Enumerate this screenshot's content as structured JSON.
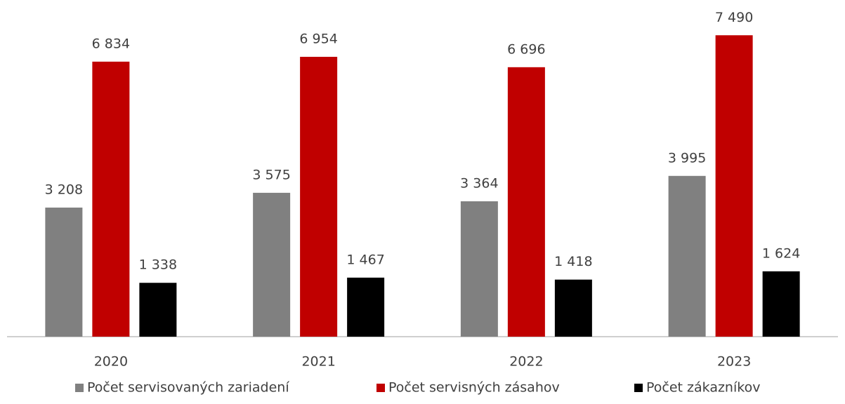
{
  "chart_data": {
    "type": "bar",
    "categories": [
      "2020",
      "2021",
      "2022",
      "2023"
    ],
    "series": [
      {
        "name": "Počet servisovaných zariadení",
        "color": "#808080",
        "values": [
          3208,
          3575,
          3364,
          3995
        ],
        "value_labels": [
          "3 208",
          "3 575",
          "3 364",
          "3 995"
        ]
      },
      {
        "name": "Počet servisných zásahov",
        "color": "#c00000",
        "values": [
          6834,
          6954,
          6696,
          7490
        ],
        "value_labels": [
          "6 834",
          "6 954",
          "6 696",
          "7 490"
        ]
      },
      {
        "name": "Počet zákazníkov",
        "color": "#000000",
        "values": [
          1338,
          1467,
          1418,
          1624
        ],
        "value_labels": [
          "1 338",
          "1 467",
          "1 418",
          "1 624"
        ]
      }
    ],
    "ylim": [
      0,
      8000
    ],
    "legend": "bottom"
  }
}
